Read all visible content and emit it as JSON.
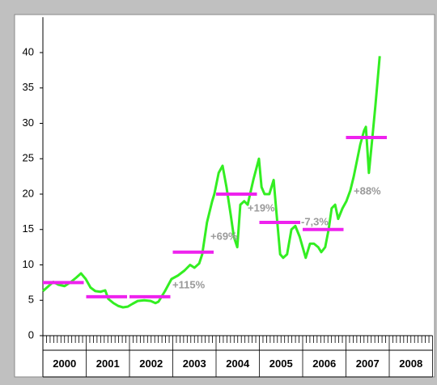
{
  "chart_data": {
    "type": "line",
    "categories": [
      "2000",
      "2001",
      "2002",
      "2003",
      "2004",
      "2005",
      "2006",
      "2007",
      "2008"
    ],
    "xlim": [
      2000,
      2009
    ],
    "ylim": [
      0,
      45
    ],
    "yticks": [
      0,
      5,
      10,
      15,
      20,
      25,
      30,
      35,
      40
    ],
    "series": [
      {
        "color": "#33ee22",
        "x": [
          2000,
          2000.13,
          2000.24,
          2000.36,
          2000.5,
          2000.65,
          2000.77,
          2000.88,
          2000.99,
          2001.1,
          2001.21,
          2001.33,
          2001.44,
          2001.51,
          2001.63,
          2001.74,
          2001.85,
          2001.96,
          2002.07,
          2002.19,
          2002.34,
          2002.49,
          2002.6,
          2002.67,
          2002.82,
          2002.97,
          2003.12,
          2003.27,
          2003.4,
          2003.5,
          2003.61,
          2003.68,
          2003.79,
          2003.91,
          2003.96,
          2004.06,
          2004.15,
          2004.24,
          2004.34,
          2004.41,
          2004.49,
          2004.56,
          2004.65,
          2004.73,
          2004.86,
          2004.99,
          2005.05,
          2005.12,
          2005.23,
          2005.33,
          2005.4,
          2005.48,
          2005.55,
          2005.64,
          2005.74,
          2005.83,
          2005.93,
          2006.0,
          2006.07,
          2006.17,
          2006.26,
          2006.36,
          2006.43,
          2006.52,
          2006.6,
          2006.67,
          2006.75,
          2006.82,
          2006.92,
          2007.01,
          2007.1,
          2007.18,
          2007.23,
          2007.33,
          2007.42,
          2007.46,
          2007.53,
          2007.61,
          2007.68,
          2007.78
        ],
        "values": [
          6.3,
          7.0,
          7.6,
          7.2,
          7.0,
          7.6,
          8.2,
          8.8,
          8.0,
          6.8,
          6.3,
          6.2,
          6.4,
          5.2,
          4.6,
          4.2,
          4.0,
          4.1,
          4.5,
          4.9,
          5.0,
          4.9,
          4.6,
          4.8,
          6.3,
          8.0,
          8.5,
          9.2,
          10.0,
          9.6,
          10.2,
          11.5,
          16,
          19,
          20,
          23,
          24,
          21,
          17,
          14,
          12.5,
          18.5,
          19,
          18.5,
          22,
          25,
          21,
          20,
          20,
          22,
          17,
          11.5,
          11,
          11.5,
          15,
          15.5,
          14,
          12.5,
          11,
          13,
          13,
          12.5,
          11.8,
          12.5,
          15,
          18,
          18.5,
          16.5,
          18,
          19,
          20.5,
          22.5,
          24,
          27,
          29,
          29.5,
          23,
          28,
          32.5,
          39.5
        ]
      },
      {
        "color": "#ee22ee",
        "type": "segments",
        "values": [
          7.5,
          5.5,
          5.5,
          11.8,
          20,
          16,
          15,
          28,
          null
        ]
      }
    ],
    "annotations": [
      "+115%",
      "+69%",
      "+19%",
      "-7,3%",
      "+88%"
    ]
  }
}
